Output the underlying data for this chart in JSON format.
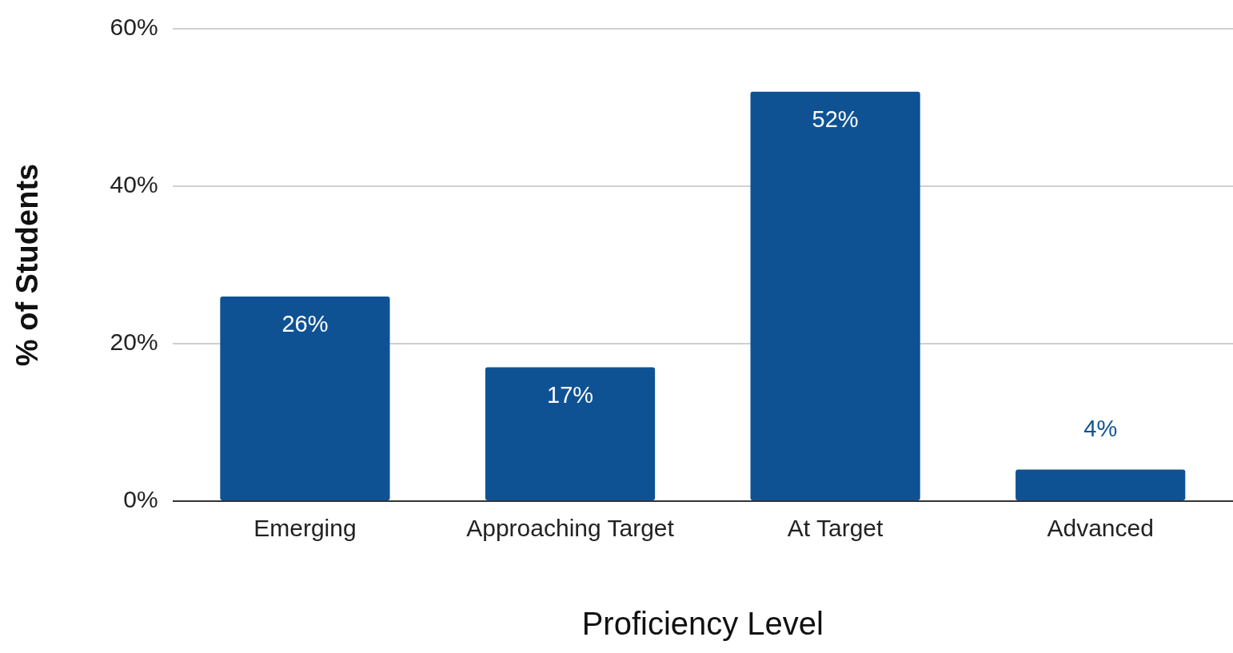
{
  "chart_data": {
    "type": "bar",
    "xlabel": "Proficiency Level",
    "ylabel": "% of Students",
    "categories": [
      "Emerging",
      "Approaching Target",
      "At Target",
      "Advanced"
    ],
    "values": [
      26,
      17,
      52,
      4
    ],
    "value_labels": [
      "26%",
      "17%",
      "52%",
      "4%"
    ],
    "color": "#0f5294",
    "ylim": [
      0,
      60
    ],
    "yticks": [
      {
        "value": 0,
        "label": "0%"
      },
      {
        "value": 20,
        "label": "20%"
      },
      {
        "value": 40,
        "label": "40%"
      },
      {
        "value": 60,
        "label": "60%"
      }
    ],
    "grid": "y",
    "legend": false
  }
}
